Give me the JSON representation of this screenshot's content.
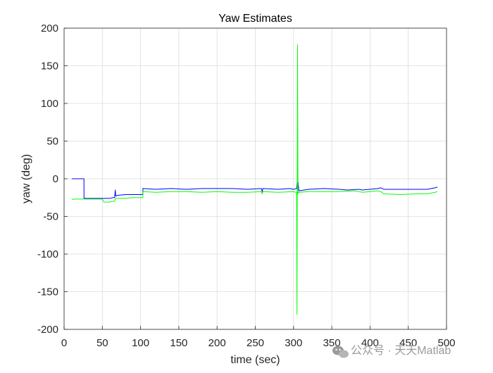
{
  "chart_data": {
    "type": "line",
    "title": "Yaw Estimates",
    "xlabel": "time (sec)",
    "ylabel": "yaw (deg)",
    "xlim": [
      0,
      500
    ],
    "ylim": [
      -200,
      200
    ],
    "xticks": [
      0,
      50,
      100,
      150,
      200,
      250,
      300,
      350,
      400,
      450,
      500
    ],
    "yticks": [
      200,
      150,
      100,
      50,
      0,
      -50,
      -100,
      -150,
      -200
    ],
    "grid": true,
    "series": [
      {
        "color": "#0000ff",
        "points": [
          [
            10,
            0
          ],
          [
            26,
            0
          ],
          [
            26,
            -26
          ],
          [
            50,
            -26
          ],
          [
            60,
            -26
          ],
          [
            64,
            -25
          ],
          [
            66,
            -25
          ],
          [
            67,
            -15
          ],
          [
            67.5,
            -23
          ],
          [
            70,
            -22
          ],
          [
            80,
            -21
          ],
          [
            90,
            -21
          ],
          [
            100,
            -21
          ],
          [
            103,
            -21
          ],
          [
            103,
            -13
          ],
          [
            120,
            -14
          ],
          [
            140,
            -13
          ],
          [
            160,
            -14
          ],
          [
            180,
            -13
          ],
          [
            200,
            -13
          ],
          [
            220,
            -13
          ],
          [
            240,
            -14
          ],
          [
            258,
            -13
          ],
          [
            259,
            -17
          ],
          [
            260,
            -13
          ],
          [
            280,
            -14
          ],
          [
            295,
            -13
          ],
          [
            300,
            -14
          ],
          [
            304,
            -13
          ],
          [
            305,
            -2
          ],
          [
            305.5,
            -16
          ],
          [
            306,
            -5
          ],
          [
            307,
            -16
          ],
          [
            320,
            -14
          ],
          [
            340,
            -13
          ],
          [
            360,
            -14
          ],
          [
            370,
            -15
          ],
          [
            385,
            -14
          ],
          [
            390,
            -15
          ],
          [
            400,
            -14
          ],
          [
            410,
            -13
          ],
          [
            414,
            -12
          ],
          [
            418,
            -14
          ],
          [
            440,
            -14
          ],
          [
            460,
            -14
          ],
          [
            475,
            -14
          ],
          [
            485,
            -12
          ],
          [
            488,
            -11
          ]
        ]
      },
      {
        "color": "#00ff00",
        "points": [
          [
            10,
            -28
          ],
          [
            12,
            -27
          ],
          [
            20,
            -27
          ],
          [
            30,
            -27
          ],
          [
            40,
            -27
          ],
          [
            50,
            -27
          ],
          [
            52,
            -31
          ],
          [
            60,
            -31
          ],
          [
            62,
            -30
          ],
          [
            66,
            -30
          ],
          [
            67,
            -26
          ],
          [
            80,
            -26
          ],
          [
            90,
            -25
          ],
          [
            100,
            -25
          ],
          [
            103,
            -25
          ],
          [
            103,
            -17
          ],
          [
            120,
            -18
          ],
          [
            140,
            -17
          ],
          [
            160,
            -17
          ],
          [
            180,
            -18
          ],
          [
            200,
            -17
          ],
          [
            220,
            -18
          ],
          [
            240,
            -18
          ],
          [
            258,
            -17
          ],
          [
            259,
            -20
          ],
          [
            260,
            -17
          ],
          [
            280,
            -18
          ],
          [
            300,
            -17
          ],
          [
            303,
            -18
          ],
          [
            304,
            -18
          ],
          [
            304.5,
            -180
          ],
          [
            305.2,
            178
          ],
          [
            305.8,
            -20
          ],
          [
            307,
            -18
          ],
          [
            320,
            -17
          ],
          [
            340,
            -17
          ],
          [
            360,
            -17
          ],
          [
            380,
            -16
          ],
          [
            385,
            -17
          ],
          [
            390,
            -18
          ],
          [
            400,
            -17
          ],
          [
            410,
            -16
          ],
          [
            414,
            -17
          ],
          [
            418,
            -20
          ],
          [
            440,
            -21
          ],
          [
            460,
            -20
          ],
          [
            475,
            -20
          ],
          [
            485,
            -18
          ],
          [
            488,
            -17
          ]
        ]
      }
    ]
  },
  "watermark": {
    "text": "公众号 · 天天Matlab",
    "icon": "wechat-icon"
  }
}
